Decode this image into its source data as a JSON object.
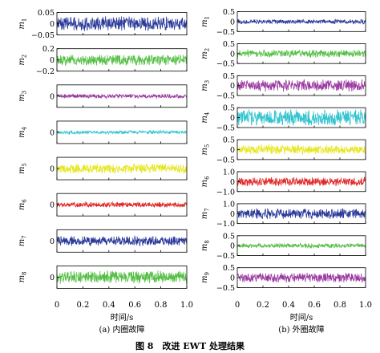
{
  "figure": {
    "caption": "图 8　改进 EWT 处理结果"
  },
  "chart_data": [
    {
      "type": "line",
      "subtitle": "(a) 内圈故障",
      "xlabel": "时间/s",
      "xlim": [
        0,
        1.0
      ],
      "xticks": [
        "0",
        "0.2",
        "0.4",
        "0.6",
        "0.8",
        "1.0"
      ],
      "panels": [
        {
          "name": "m1",
          "label_base": "m",
          "label_sub": "1",
          "color": "#2b3a9a",
          "ylim": [
            -0.05,
            0.05
          ],
          "yticks": [
            {
              "v": 0.05,
              "t": "0.05"
            },
            {
              "v": 0,
              "t": "0"
            },
            {
              "v": -0.05,
              "t": "−0.05"
            }
          ],
          "amplitude": 0.033
        },
        {
          "name": "m2",
          "label_base": "m",
          "label_sub": "2",
          "color": "#55bf45",
          "ylim": [
            -0.2,
            0.2
          ],
          "yticks": [
            {
              "v": 0.2,
              "t": "0.2"
            },
            {
              "v": 0,
              "t": "0"
            },
            {
              "v": -0.2,
              "t": "−0.2"
            }
          ],
          "amplitude": 0.1
        },
        {
          "name": "m3",
          "label_base": "m",
          "label_sub": "3",
          "color": "#9a3aa0",
          "ylim": [
            -0.5,
            0.5
          ],
          "yticks": [
            {
              "v": 0,
              "t": "0"
            }
          ],
          "amplitude": 0.1
        },
        {
          "name": "m4",
          "label_base": "m",
          "label_sub": "4",
          "color": "#33c4cf",
          "ylim": [
            -0.5,
            0.5
          ],
          "yticks": [
            {
              "v": 0,
              "t": "0"
            }
          ],
          "amplitude": 0.08
        },
        {
          "name": "m5",
          "label_base": "m",
          "label_sub": "5",
          "color": "#e6e620",
          "ylim": [
            -0.5,
            0.5
          ],
          "yticks": [
            {
              "v": 0,
              "t": "0"
            }
          ],
          "amplitude": 0.22
        },
        {
          "name": "m6",
          "label_base": "m",
          "label_sub": "6",
          "color": "#e02a2a",
          "ylim": [
            -0.5,
            0.5
          ],
          "yticks": [
            {
              "v": 0,
              "t": "0"
            }
          ],
          "amplitude": 0.12
        },
        {
          "name": "m7",
          "label_base": "m",
          "label_sub": "7",
          "color": "#2b3a9a",
          "ylim": [
            -0.5,
            0.5
          ],
          "yticks": [
            {
              "v": 0,
              "t": "0"
            }
          ],
          "amplitude": 0.22
        },
        {
          "name": "m8",
          "label_base": "m",
          "label_sub": "8",
          "color": "#55bf45",
          "ylim": [
            -0.5,
            0.5
          ],
          "yticks": [
            {
              "v": 0,
              "t": "0"
            }
          ],
          "amplitude": 0.3
        }
      ]
    },
    {
      "type": "line",
      "subtitle": "(b) 外圈故障",
      "xlabel": "时间/s",
      "xlim": [
        0,
        1.0
      ],
      "xticks": [
        "0",
        "0.2",
        "0.4",
        "0.6",
        "0.8",
        "1.0"
      ],
      "panels": [
        {
          "name": "m1",
          "label_base": "m",
          "label_sub": "1",
          "color": "#2b3a9a",
          "ylim": [
            -0.5,
            0.5
          ],
          "yticks": [
            {
              "v": 0.5,
              "t": "0.5"
            },
            {
              "v": 0,
              "t": "0"
            },
            {
              "v": -0.5,
              "t": "−0.5"
            }
          ],
          "amplitude": 0.12
        },
        {
          "name": "m2",
          "label_base": "m",
          "label_sub": "2",
          "color": "#55bf45",
          "ylim": [
            -0.5,
            0.5
          ],
          "yticks": [
            {
              "v": 0.5,
              "t": "0.5"
            },
            {
              "v": 0,
              "t": "0"
            },
            {
              "v": -0.5,
              "t": "−0.5"
            }
          ],
          "amplitude": 0.2
        },
        {
          "name": "m3",
          "label_base": "m",
          "label_sub": "3",
          "color": "#9a3aa0",
          "ylim": [
            -0.5,
            0.5
          ],
          "yticks": [
            {
              "v": 0.5,
              "t": "0.5"
            },
            {
              "v": 0,
              "t": "0"
            },
            {
              "v": -0.5,
              "t": "−0.5"
            }
          ],
          "amplitude": 0.32
        },
        {
          "name": "m4",
          "label_base": "m",
          "label_sub": "4",
          "color": "#33c4cf",
          "ylim": [
            -0.5,
            0.5
          ],
          "yticks": [
            {
              "v": 0.5,
              "t": "0.5"
            },
            {
              "v": 0,
              "t": "0"
            },
            {
              "v": -0.5,
              "t": "−0.5"
            }
          ],
          "amplitude": 0.42
        },
        {
          "name": "m5",
          "label_base": "m",
          "label_sub": "5",
          "color": "#e6e620",
          "ylim": [
            -0.5,
            0.5
          ],
          "yticks": [
            {
              "v": 0.5,
              "t": "0.5"
            },
            {
              "v": 0,
              "t": "0"
            },
            {
              "v": -0.5,
              "t": "−0.5"
            }
          ],
          "amplitude": 0.24
        },
        {
          "name": "m6",
          "label_base": "m",
          "label_sub": "6",
          "color": "#e02a2a",
          "ylim": [
            -1.0,
            1.0
          ],
          "yticks": [
            {
              "v": 1.0,
              "t": "1.0"
            },
            {
              "v": 0,
              "t": "0"
            },
            {
              "v": -1.0,
              "t": "−1.0"
            }
          ],
          "amplitude": 0.45
        },
        {
          "name": "m7",
          "label_base": "m",
          "label_sub": "7",
          "color": "#2b3a9a",
          "ylim": [
            -1.0,
            1.0
          ],
          "yticks": [
            {
              "v": 1.0,
              "t": "1.0"
            },
            {
              "v": 0,
              "t": "0"
            },
            {
              "v": -1.0,
              "t": "−1.0"
            }
          ],
          "amplitude": 0.55
        },
        {
          "name": "m8",
          "label_base": "m",
          "label_sub": "8",
          "color": "#55bf45",
          "ylim": [
            -0.5,
            0.5
          ],
          "yticks": [
            {
              "v": 0.5,
              "t": "0.5"
            },
            {
              "v": 0,
              "t": "0"
            },
            {
              "v": -0.5,
              "t": "−0.5"
            }
          ],
          "amplitude": 0.12
        },
        {
          "name": "m9",
          "label_base": "m",
          "label_sub": "9",
          "color": "#9a3aa0",
          "ylim": [
            -0.5,
            0.5
          ],
          "yticks": [
            {
              "v": 0.5,
              "t": "0.5"
            },
            {
              "v": 0,
              "t": "0"
            },
            {
              "v": -0.5,
              "t": "−0.5"
            }
          ],
          "amplitude": 0.26
        }
      ]
    }
  ]
}
